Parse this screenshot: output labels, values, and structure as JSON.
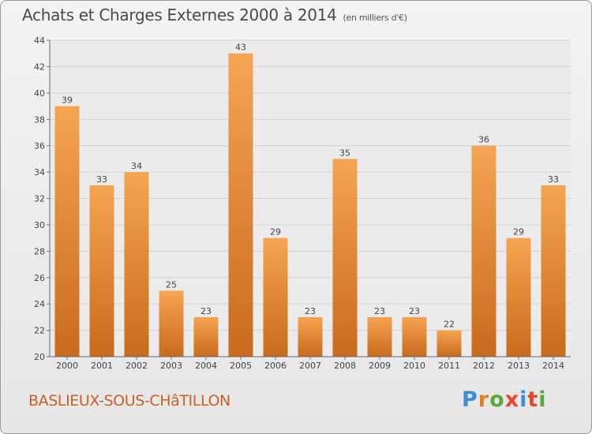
{
  "header": {
    "title": "Achats et Charges Externes 2000 à 2014",
    "unit": "(en milliers d'€)"
  },
  "footer": {
    "commune": "BASLIEUX-SOUS-CHâTILLON",
    "logo": "Proxiti"
  },
  "colors": {
    "bar_light": "#f5a552",
    "bar_dark": "#c96a1c",
    "commune_text": "#c8602a",
    "logo_letters": [
      "#3b8fd6",
      "#e57c24",
      "#5aa83c",
      "#e8462f",
      "#3b8fd6",
      "#e8462f",
      "#5aa83c"
    ]
  },
  "chart_data": {
    "type": "bar",
    "title": "Achats et Charges Externes 2000 à 2014",
    "categories": [
      "2000",
      "2001",
      "2002",
      "2003",
      "2004",
      "2005",
      "2006",
      "2007",
      "2008",
      "2009",
      "2010",
      "2011",
      "2012",
      "2013",
      "2014"
    ],
    "values": [
      39,
      33,
      34,
      25,
      23,
      43,
      29,
      23,
      35,
      23,
      23,
      22,
      36,
      29,
      33
    ],
    "yticks": [
      20,
      22,
      24,
      26,
      28,
      30,
      32,
      34,
      36,
      38,
      40,
      42,
      44
    ],
    "ylim": [
      20,
      44
    ],
    "grid": true,
    "legend": "none"
  }
}
